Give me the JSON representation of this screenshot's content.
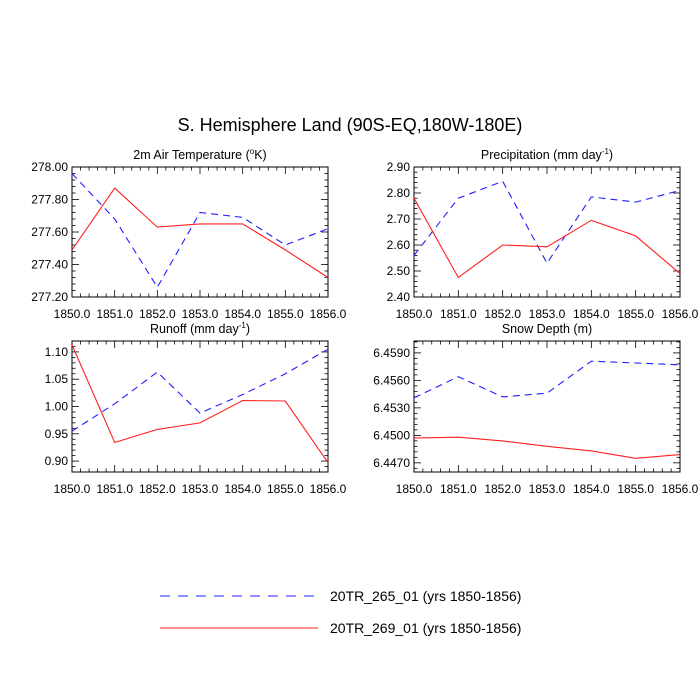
{
  "figure_title": "S. Hemisphere Land (90S-EQ,180W-180E)",
  "colors": {
    "series_a": "#1f1fff",
    "series_b": "#ff2020"
  },
  "legend": [
    {
      "label": "20TR_265_01 (yrs 1850-1856)",
      "style": "dashed",
      "color": "#1f1fff"
    },
    {
      "label": "20TR_269_01 (yrs 1850-1856)",
      "style": "solid",
      "color": "#ff2020"
    }
  ],
  "chart_data": [
    {
      "type": "line",
      "title_main": "2m Air Temperature (",
      "title_sup": "o",
      "title_end": "K)",
      "x": [
        1850,
        1851,
        1852,
        1853,
        1854,
        1855,
        1856
      ],
      "x_tick_labels": [
        "1850.0",
        "1851.0",
        "1852.0",
        "1853.0",
        "1854.0",
        "1855.0",
        "1856.0"
      ],
      "xlim": [
        1850,
        1856
      ],
      "ylim": [
        277.2,
        278.0
      ],
      "y_ticks": [
        277.2,
        277.4,
        277.6,
        277.8,
        278.0
      ],
      "y_tick_labels": [
        "277.20",
        "277.40",
        "277.60",
        "277.80",
        "278.00"
      ],
      "series": [
        {
          "name": "20TR_265_01 (yrs 1850-1856)",
          "style": "dashed",
          "values": [
            277.96,
            277.68,
            277.26,
            277.72,
            277.69,
            277.52,
            277.62
          ]
        },
        {
          "name": "20TR_269_01 (yrs 1850-1856)",
          "style": "solid",
          "values": [
            277.49,
            277.87,
            277.63,
            277.65,
            277.65,
            277.49,
            277.32
          ]
        }
      ]
    },
    {
      "type": "line",
      "title_main": "Precipitation (mm day",
      "title_sup": "-1",
      "title_end": ")",
      "x": [
        1850,
        1851,
        1852,
        1853,
        1854,
        1855,
        1856
      ],
      "x_tick_labels": [
        "1850.0",
        "1851.0",
        "1852.0",
        "1853.0",
        "1854.0",
        "1855.0",
        "1856.0"
      ],
      "xlim": [
        1850,
        1856
      ],
      "ylim": [
        2.4,
        2.9
      ],
      "y_ticks": [
        2.4,
        2.5,
        2.6,
        2.7,
        2.8,
        2.9
      ],
      "y_tick_labels": [
        "2.40",
        "2.50",
        "2.60",
        "2.70",
        "2.80",
        "2.90"
      ],
      "series": [
        {
          "name": "20TR_265_01 (yrs 1850-1856)",
          "style": "dashed",
          "values": [
            2.56,
            2.78,
            2.845,
            2.53,
            2.785,
            2.765,
            2.81
          ]
        },
        {
          "name": "20TR_269_01 (yrs 1850-1856)",
          "style": "solid",
          "values": [
            2.78,
            2.475,
            2.6,
            2.593,
            2.695,
            2.635,
            2.49
          ]
        }
      ]
    },
    {
      "type": "line",
      "title_main": "Runoff (mm day",
      "title_sup": "-1",
      "title_end": ")",
      "x": [
        1850,
        1851,
        1852,
        1853,
        1854,
        1855,
        1856
      ],
      "x_tick_labels": [
        "1850.0",
        "1851.0",
        "1852.0",
        "1853.0",
        "1854.0",
        "1855.0",
        "1856.0"
      ],
      "xlim": [
        1850,
        1856
      ],
      "ylim": [
        0.88,
        1.12
      ],
      "y_ticks": [
        0.9,
        0.95,
        1.0,
        1.05,
        1.1
      ],
      "y_tick_labels": [
        "0.90",
        "0.95",
        "1.00",
        "1.05",
        "1.10"
      ],
      "series": [
        {
          "name": "20TR_265_01 (yrs 1850-1856)",
          "style": "dashed",
          "values": [
            0.955,
            1.005,
            1.063,
            0.988,
            1.022,
            1.06,
            1.105
          ]
        },
        {
          "name": "20TR_269_01 (yrs 1850-1856)",
          "style": "solid",
          "values": [
            1.113,
            0.934,
            0.958,
            0.97,
            1.011,
            1.01,
            0.897
          ]
        }
      ]
    },
    {
      "type": "line",
      "title_main": "Snow Depth (m)",
      "title_sup": "",
      "title_end": "",
      "x": [
        1850,
        1851,
        1852,
        1853,
        1854,
        1855,
        1856
      ],
      "x_tick_labels": [
        "1850.0",
        "1851.0",
        "1852.0",
        "1853.0",
        "1854.0",
        "1855.0",
        "1856.0"
      ],
      "xlim": [
        1850,
        1856
      ],
      "ylim": [
        6.446,
        6.4603
      ],
      "y_ticks": [
        6.447,
        6.45,
        6.453,
        6.456,
        6.459
      ],
      "y_tick_labels": [
        "6.4470",
        "6.4500",
        "6.4530",
        "6.4560",
        "6.4590"
      ],
      "series": [
        {
          "name": "20TR_265_01 (yrs 1850-1856)",
          "style": "dashed",
          "values": [
            6.4541,
            6.4564,
            6.4542,
            6.4546,
            6.4581,
            6.4579,
            6.4577
          ]
        },
        {
          "name": "20TR_269_01 (yrs 1850-1856)",
          "style": "solid",
          "values": [
            6.4497,
            6.4498,
            6.4494,
            6.4488,
            6.4483,
            6.4475,
            6.4479
          ]
        }
      ]
    }
  ]
}
